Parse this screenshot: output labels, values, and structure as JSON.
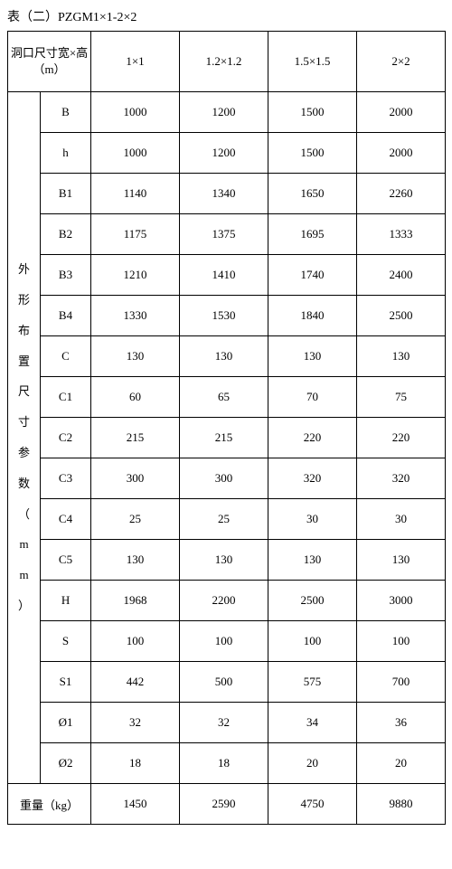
{
  "caption": "表（二）PZGM1×1-2×2",
  "header": {
    "opening": "洞口尺寸宽×高（m）",
    "sizes": [
      "1×1",
      "1.2×1.2",
      "1.5×1.5",
      "2×2"
    ]
  },
  "rowGroupLabel": "外形布置尺寸参数（mm）",
  "params": [
    {
      "label": "B",
      "v": [
        "1000",
        "1200",
        "1500",
        "2000"
      ]
    },
    {
      "label": "h",
      "v": [
        "1000",
        "1200",
        "1500",
        "2000"
      ]
    },
    {
      "label": "B1",
      "v": [
        "1140",
        "1340",
        "1650",
        "2260"
      ]
    },
    {
      "label": "B2",
      "v": [
        "1175",
        "1375",
        "1695",
        "1333"
      ]
    },
    {
      "label": "B3",
      "v": [
        "1210",
        "1410",
        "1740",
        "2400"
      ]
    },
    {
      "label": "B4",
      "v": [
        "1330",
        "1530",
        "1840",
        "2500"
      ]
    },
    {
      "label": "C",
      "v": [
        "130",
        "130",
        "130",
        "130"
      ]
    },
    {
      "label": "C1",
      "v": [
        "60",
        "65",
        "70",
        "75"
      ]
    },
    {
      "label": "C2",
      "v": [
        "215",
        "215",
        "220",
        "220"
      ]
    },
    {
      "label": "C3",
      "v": [
        "300",
        "300",
        "320",
        "320"
      ]
    },
    {
      "label": "C4",
      "v": [
        "25",
        "25",
        "30",
        "30"
      ]
    },
    {
      "label": "C5",
      "v": [
        "130",
        "130",
        "130",
        "130"
      ]
    },
    {
      "label": "H",
      "v": [
        "1968",
        "2200",
        "2500",
        "3000"
      ]
    },
    {
      "label": "S",
      "v": [
        "100",
        "100",
        "100",
        "100"
      ]
    },
    {
      "label": "S1",
      "v": [
        "442",
        "500",
        "575",
        "700"
      ]
    },
    {
      "label": "Ø1",
      "v": [
        "32",
        "32",
        "34",
        "36"
      ]
    },
    {
      "label": "Ø2",
      "v": [
        "18",
        "18",
        "20",
        "20"
      ]
    }
  ],
  "weight": {
    "label": "重量（kg）",
    "v": [
      "1450",
      "2590",
      "4750",
      "9880"
    ]
  }
}
